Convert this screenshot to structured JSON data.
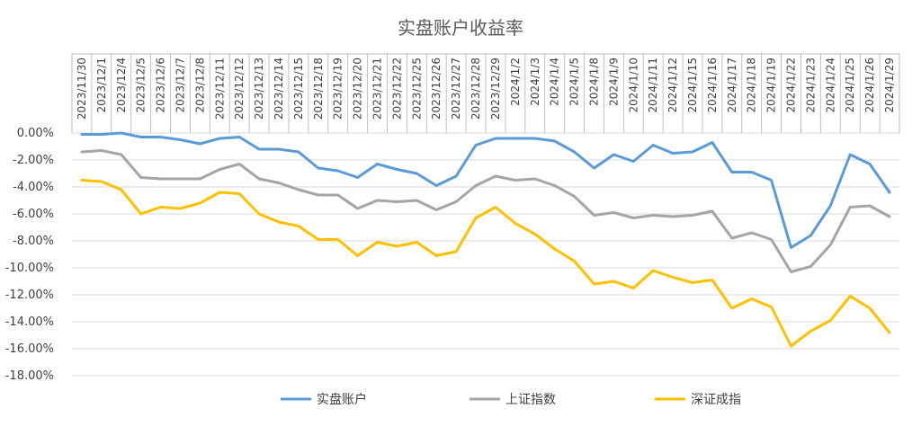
{
  "chart_data": {
    "type": "line",
    "title": "实盘账户收益率",
    "xlabel": "",
    "ylabel": "",
    "ylim": [
      -0.18,
      0.0
    ],
    "y_tick_labels": [
      "0.00%",
      "-2.00%",
      "-4.00%",
      "-6.00%",
      "-8.00%",
      "-10.00%",
      "-12.00%",
      "-14.00%",
      "-16.00%",
      "-18.00%"
    ],
    "y_tick_values": [
      0,
      -0.02,
      -0.04,
      -0.06,
      -0.08,
      -0.1,
      -0.12,
      -0.14,
      -0.16,
      -0.18
    ],
    "grid": true,
    "legend_position": "bottom",
    "categories": [
      "2023/11/30",
      "2023/12/1",
      "2023/12/4",
      "2023/12/5",
      "2023/12/6",
      "2023/12/7",
      "2023/12/8",
      "2023/12/11",
      "2023/12/12",
      "2023/12/13",
      "2023/12/14",
      "2023/12/15",
      "2023/12/18",
      "2023/12/19",
      "2023/12/20",
      "2023/12/21",
      "2023/12/22",
      "2023/12/25",
      "2023/12/26",
      "2023/12/27",
      "2023/12/28",
      "2023/12/29",
      "2024/1/2",
      "2024/1/3",
      "2024/1/4",
      "2024/1/5",
      "2024/1/8",
      "2024/1/9",
      "2024/1/10",
      "2024/1/11",
      "2024/1/12",
      "2024/1/15",
      "2024/1/16",
      "2024/1/17",
      "2024/1/18",
      "2024/1/19",
      "2024/1/22",
      "2024/1/23",
      "2024/1/24",
      "2024/1/25",
      "2024/1/26",
      "2024/1/29"
    ],
    "series": [
      {
        "name": "实盘账户",
        "color": "#5b9bd5",
        "values": [
          -0.001,
          -0.001,
          0.0,
          -0.003,
          -0.003,
          -0.005,
          -0.008,
          -0.004,
          -0.003,
          -0.012,
          -0.012,
          -0.014,
          -0.026,
          -0.028,
          -0.033,
          -0.023,
          -0.027,
          -0.03,
          -0.039,
          -0.032,
          -0.009,
          -0.004,
          -0.004,
          -0.004,
          -0.006,
          -0.014,
          -0.026,
          -0.016,
          -0.021,
          -0.009,
          -0.015,
          -0.014,
          -0.007,
          -0.029,
          -0.029,
          -0.035,
          -0.085,
          -0.076,
          -0.054,
          -0.016,
          -0.023,
          -0.044
        ]
      },
      {
        "name": "上证指数",
        "color": "#a5a5a5",
        "values": [
          -0.014,
          -0.013,
          -0.016,
          -0.033,
          -0.034,
          -0.034,
          -0.034,
          -0.027,
          -0.023,
          -0.034,
          -0.037,
          -0.042,
          -0.046,
          -0.046,
          -0.056,
          -0.05,
          -0.051,
          -0.05,
          -0.057,
          -0.051,
          -0.039,
          -0.032,
          -0.035,
          -0.034,
          -0.039,
          -0.047,
          -0.061,
          -0.059,
          -0.063,
          -0.061,
          -0.062,
          -0.061,
          -0.058,
          -0.078,
          -0.074,
          -0.079,
          -0.103,
          -0.099,
          -0.083,
          -0.055,
          -0.054,
          -0.062
        ]
      },
      {
        "name": "深证成指",
        "color": "#ffc000",
        "values": [
          -0.035,
          -0.036,
          -0.042,
          -0.06,
          -0.055,
          -0.056,
          -0.052,
          -0.044,
          -0.045,
          -0.06,
          -0.066,
          -0.069,
          -0.079,
          -0.079,
          -0.091,
          -0.081,
          -0.084,
          -0.081,
          -0.091,
          -0.088,
          -0.063,
          -0.055,
          -0.067,
          -0.075,
          -0.086,
          -0.095,
          -0.112,
          -0.11,
          -0.115,
          -0.102,
          -0.107,
          -0.111,
          -0.109,
          -0.13,
          -0.123,
          -0.129,
          -0.158,
          -0.147,
          -0.139,
          -0.121,
          -0.13,
          -0.148
        ]
      }
    ]
  }
}
